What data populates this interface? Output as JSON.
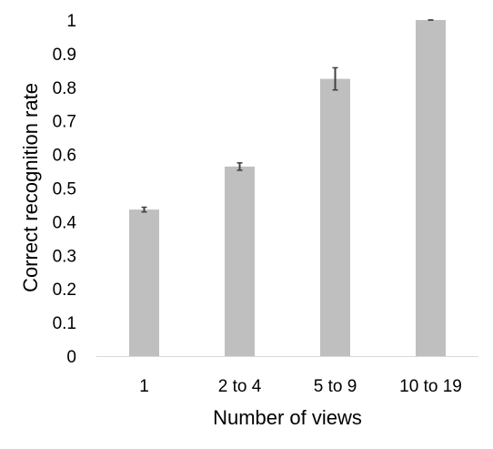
{
  "chart_data": {
    "type": "bar",
    "title": "",
    "xlabel": "Number of views",
    "ylabel": "Correct recognition rate",
    "categories": [
      "1",
      "2 to 4",
      "5 to 9",
      "10 to 19"
    ],
    "values": [
      0.436,
      0.564,
      0.825,
      1.0
    ],
    "error_bars": [
      0.007,
      0.011,
      0.033,
      0.0
    ],
    "ylim": [
      0,
      1
    ],
    "yticks": [
      "0",
      "0.1",
      "0.2",
      "0.3",
      "0.4",
      "0.5",
      "0.6",
      "0.7",
      "0.8",
      "0.9",
      "1"
    ],
    "grid": false,
    "legend": "none",
    "colors": {
      "bar": "#bfbfbf",
      "error_bar": "#404040",
      "axis": "#d9d9d9"
    }
  }
}
